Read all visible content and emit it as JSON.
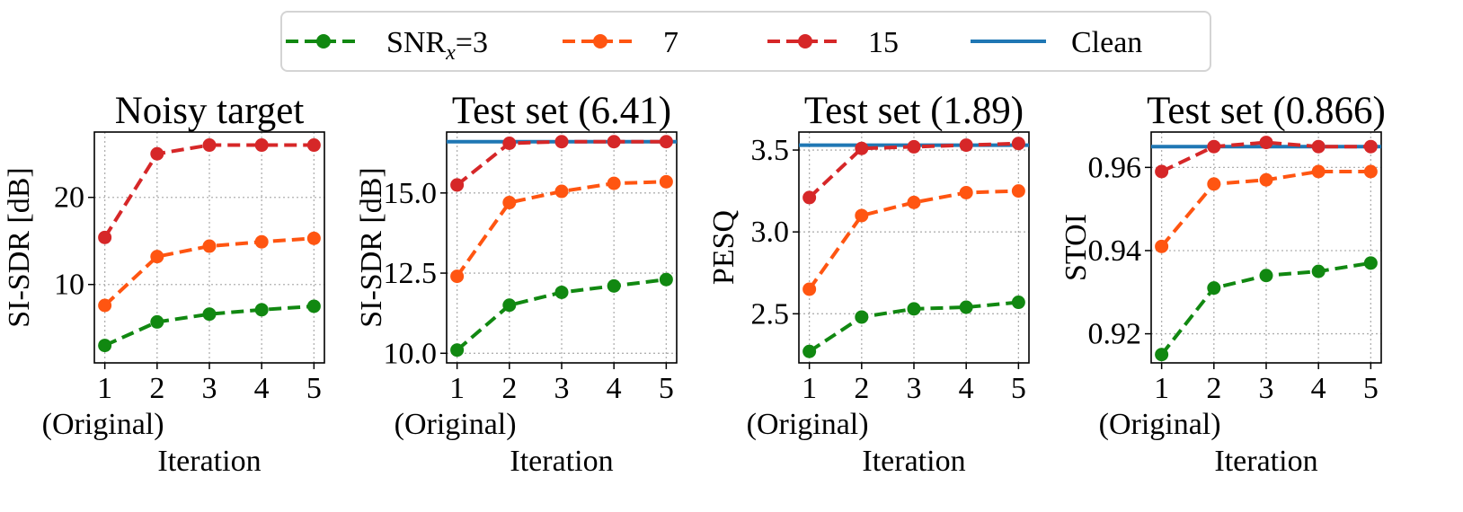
{
  "chart_data": [
    {
      "type": "line",
      "title": "Noisy target",
      "xlabel": "Iteration",
      "ylabel": "SI-SDR [dB]",
      "x": [
        1,
        2,
        3,
        4,
        5
      ],
      "xtick_labels": [
        "1",
        "2",
        "3",
        "4",
        "5"
      ],
      "xtick_sublabel": "(Original)",
      "ylim": [
        1.0,
        27.5
      ],
      "yticks": [
        10,
        20
      ],
      "ytick_labels": [
        "10",
        "20"
      ],
      "grid": true,
      "clean": null,
      "series": [
        {
          "name": "SNRx=3",
          "values": [
            3.0,
            5.7,
            6.6,
            7.1,
            7.5
          ]
        },
        {
          "name": "7",
          "values": [
            7.6,
            13.2,
            14.4,
            14.9,
            15.3
          ]
        },
        {
          "name": "15",
          "values": [
            15.4,
            25.0,
            26.0,
            26.0,
            26.0
          ]
        }
      ]
    },
    {
      "type": "line",
      "title": "Test set (6.41)",
      "xlabel": "Iteration",
      "ylabel": "SI-SDR [dB]",
      "x": [
        1,
        2,
        3,
        4,
        5
      ],
      "xtick_labels": [
        "1",
        "2",
        "3",
        "4",
        "5"
      ],
      "xtick_sublabel": "(Original)",
      "ylim": [
        9.7,
        16.9
      ],
      "yticks": [
        10.0,
        12.5,
        15.0
      ],
      "ytick_labels": [
        "10.0",
        "12.5",
        "15.0"
      ],
      "grid": true,
      "clean": 16.6,
      "series": [
        {
          "name": "SNRx=3",
          "values": [
            10.1,
            11.5,
            11.9,
            12.1,
            12.3
          ]
        },
        {
          "name": "7",
          "values": [
            12.4,
            14.7,
            15.05,
            15.3,
            15.35
          ]
        },
        {
          "name": "15",
          "values": [
            15.25,
            16.55,
            16.6,
            16.6,
            16.6
          ]
        }
      ]
    },
    {
      "type": "line",
      "title": "Test set (1.89)",
      "xlabel": "Iteration",
      "ylabel": "PESQ",
      "x": [
        1,
        2,
        3,
        4,
        5
      ],
      "xtick_labels": [
        "1",
        "2",
        "3",
        "4",
        "5"
      ],
      "xtick_sublabel": "(Original)",
      "ylim": [
        2.2,
        3.61
      ],
      "yticks": [
        2.5,
        3.0,
        3.5
      ],
      "ytick_labels": [
        "2.5",
        "3.0",
        "3.5"
      ],
      "grid": true,
      "clean": 3.53,
      "series": [
        {
          "name": "SNRx=3",
          "values": [
            2.27,
            2.48,
            2.53,
            2.54,
            2.57
          ]
        },
        {
          "name": "7",
          "values": [
            2.65,
            3.1,
            3.18,
            3.24,
            3.25
          ]
        },
        {
          "name": "15",
          "values": [
            3.21,
            3.51,
            3.52,
            3.53,
            3.54
          ]
        }
      ]
    },
    {
      "type": "line",
      "title": "Test set (0.866)",
      "xlabel": "Iteration",
      "ylabel": "STOI",
      "x": [
        1,
        2,
        3,
        4,
        5
      ],
      "xtick_labels": [
        "1",
        "2",
        "3",
        "4",
        "5"
      ],
      "xtick_sublabel": "(Original)",
      "ylim": [
        0.913,
        0.9685
      ],
      "yticks": [
        0.92,
        0.94,
        0.96
      ],
      "ytick_labels": [
        "0.92",
        "0.94",
        "0.96"
      ],
      "grid": true,
      "clean": 0.965,
      "series": [
        {
          "name": "SNRx=3",
          "values": [
            0.915,
            0.931,
            0.934,
            0.935,
            0.937
          ]
        },
        {
          "name": "7",
          "values": [
            0.941,
            0.956,
            0.957,
            0.959,
            0.959
          ]
        },
        {
          "name": "15",
          "values": [
            0.959,
            0.965,
            0.966,
            0.965,
            0.965
          ]
        }
      ]
    }
  ],
  "legend": {
    "placement": "top-center",
    "entries": [
      {
        "label_main": "SNR",
        "label_sub": "x",
        "label_suffix": "=3",
        "color": "#118811",
        "style": "dashed-marker"
      },
      {
        "label_main": "7",
        "color": "#ff5511",
        "style": "dashed-marker"
      },
      {
        "label_main": "15",
        "color": "#d62728",
        "style": "dashed-marker"
      },
      {
        "label_main": "Clean",
        "color": "#1f77b4",
        "style": "solid"
      }
    ]
  },
  "colors": {
    "series": [
      "#118811",
      "#ff5511",
      "#d62728"
    ],
    "clean": "#1f77b4",
    "grid": "#b0b0b0"
  }
}
